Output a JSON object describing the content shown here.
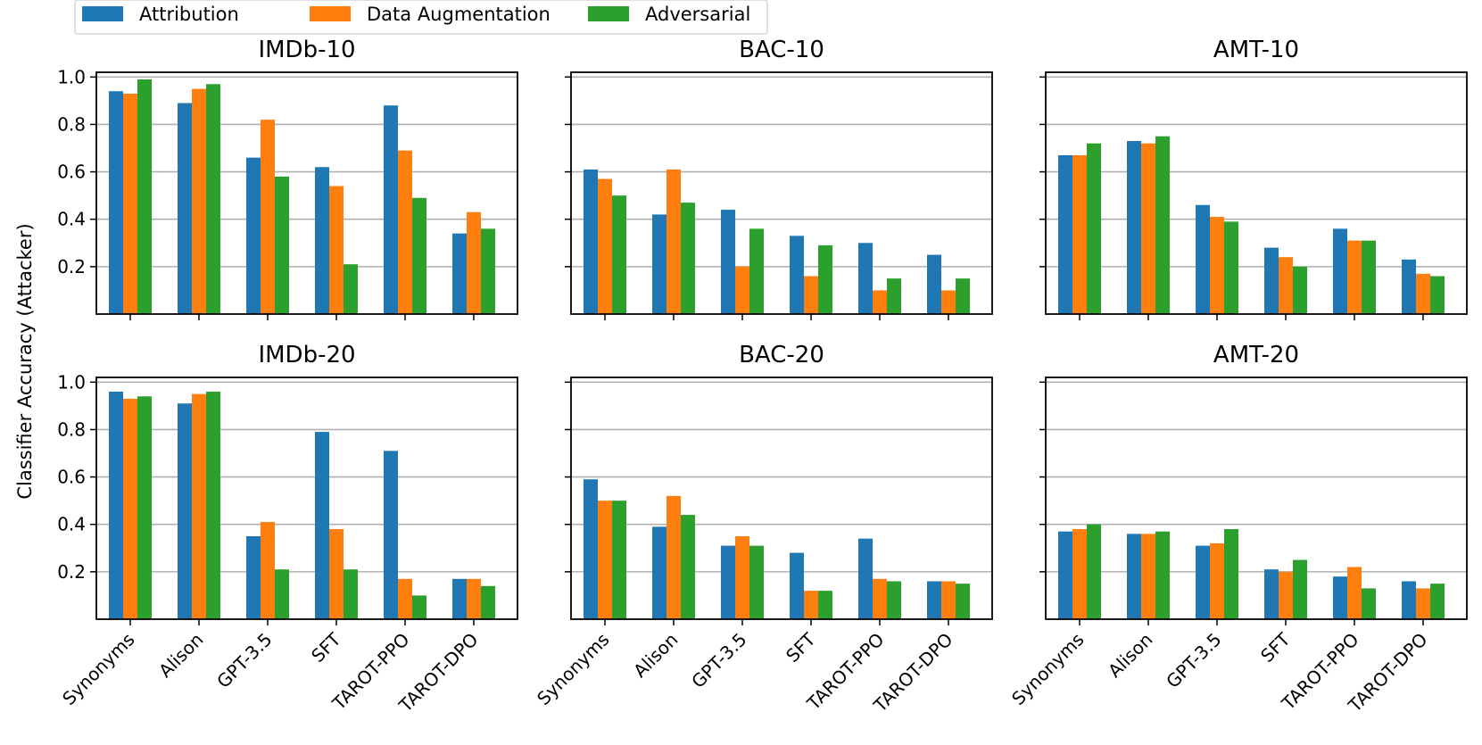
{
  "chart_data": {
    "type": "bar",
    "ylabel": "Classifier Accuracy (Attacker)",
    "ylim": [
      0,
      1.02
    ],
    "yticks": [
      0.2,
      0.4,
      0.6,
      0.8,
      1.0
    ],
    "ytick_labels": [
      "0.2",
      "0.4",
      "0.6",
      "0.8",
      "1.0"
    ],
    "categories": [
      "Synonyms",
      "Alison",
      "GPT-3.5",
      "SFT",
      "TAROT-PPO",
      "TAROT-DPO"
    ],
    "grid": "horizontal",
    "legend_position": "top-left",
    "series_colors": [
      "#1f77b4",
      "#ff7f0e",
      "#2ca02c"
    ],
    "series_names": [
      "Attribution",
      "Data Augmentation",
      "Adversarial"
    ],
    "panels": [
      {
        "title": "IMDb-10",
        "series": [
          {
            "name": "Attribution",
            "values": [
              0.94,
              0.89,
              0.66,
              0.62,
              0.88,
              0.34
            ]
          },
          {
            "name": "Data Augmentation",
            "values": [
              0.93,
              0.95,
              0.82,
              0.54,
              0.69,
              0.43
            ]
          },
          {
            "name": "Adversarial",
            "values": [
              0.99,
              0.97,
              0.58,
              0.21,
              0.49,
              0.36
            ]
          }
        ]
      },
      {
        "title": "BAC-10",
        "series": [
          {
            "name": "Attribution",
            "values": [
              0.61,
              0.42,
              0.44,
              0.33,
              0.3,
              0.25
            ]
          },
          {
            "name": "Data Augmentation",
            "values": [
              0.57,
              0.61,
              0.2,
              0.16,
              0.1,
              0.1
            ]
          },
          {
            "name": "Adversarial",
            "values": [
              0.5,
              0.47,
              0.36,
              0.29,
              0.15,
              0.15
            ]
          }
        ]
      },
      {
        "title": "AMT-10",
        "series": [
          {
            "name": "Attribution",
            "values": [
              0.67,
              0.73,
              0.46,
              0.28,
              0.36,
              0.23
            ]
          },
          {
            "name": "Data Augmentation",
            "values": [
              0.67,
              0.72,
              0.41,
              0.24,
              0.31,
              0.17
            ]
          },
          {
            "name": "Adversarial",
            "values": [
              0.72,
              0.75,
              0.39,
              0.2,
              0.31,
              0.16
            ]
          }
        ]
      },
      {
        "title": "IMDb-20",
        "series": [
          {
            "name": "Attribution",
            "values": [
              0.96,
              0.91,
              0.35,
              0.79,
              0.71,
              0.17
            ]
          },
          {
            "name": "Data Augmentation",
            "values": [
              0.93,
              0.95,
              0.41,
              0.38,
              0.17,
              0.17
            ]
          },
          {
            "name": "Adversarial",
            "values": [
              0.94,
              0.96,
              0.21,
              0.21,
              0.1,
              0.14
            ]
          }
        ]
      },
      {
        "title": "BAC-20",
        "series": [
          {
            "name": "Attribution",
            "values": [
              0.59,
              0.39,
              0.31,
              0.28,
              0.34,
              0.16
            ]
          },
          {
            "name": "Data Augmentation",
            "values": [
              0.5,
              0.52,
              0.35,
              0.12,
              0.17,
              0.16
            ]
          },
          {
            "name": "Adversarial",
            "values": [
              0.5,
              0.44,
              0.31,
              0.12,
              0.16,
              0.15
            ]
          }
        ]
      },
      {
        "title": "AMT-20",
        "series": [
          {
            "name": "Attribution",
            "values": [
              0.37,
              0.36,
              0.31,
              0.21,
              0.18,
              0.16
            ]
          },
          {
            "name": "Data Augmentation",
            "values": [
              0.38,
              0.36,
              0.32,
              0.2,
              0.22,
              0.13
            ]
          },
          {
            "name": "Adversarial",
            "values": [
              0.4,
              0.37,
              0.38,
              0.25,
              0.13,
              0.15
            ]
          }
        ]
      }
    ]
  }
}
